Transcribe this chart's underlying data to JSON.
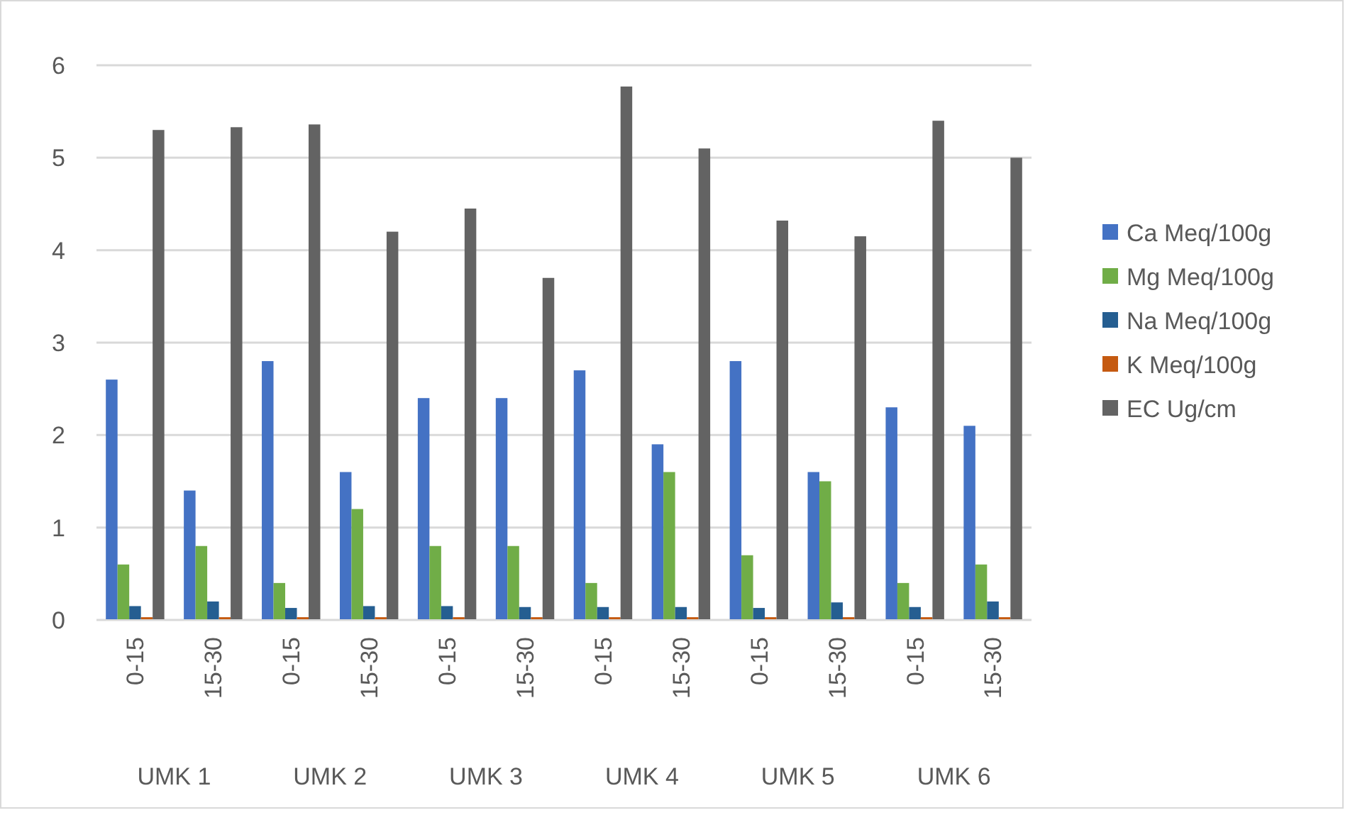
{
  "chart_data": {
    "type": "bar",
    "categories": [
      "0-15",
      "15-30",
      "0-15",
      "15-30",
      "0-15",
      "15-30",
      "0-15",
      "15-30",
      "0-15",
      "15-30",
      "0-15",
      "15-30"
    ],
    "annotations": [
      "UMK 1",
      "UMK 2",
      "UMK 3",
      "UMK 4",
      "UMK 5",
      "UMK 6"
    ],
    "series": [
      {
        "name": "Ca Meq/100g",
        "color": "#4472c4",
        "values": [
          2.6,
          1.4,
          2.8,
          1.6,
          2.4,
          2.4,
          2.7,
          1.9,
          2.8,
          1.6,
          2.3,
          2.1
        ]
      },
      {
        "name": "Mg Meq/100g",
        "color": "#70ad47",
        "values": [
          0.6,
          0.8,
          0.4,
          1.2,
          0.8,
          0.8,
          0.4,
          1.6,
          0.7,
          1.5,
          0.4,
          0.6
        ]
      },
      {
        "name": "Na Meq/100g",
        "color": "#255e91",
        "values": [
          0.15,
          0.2,
          0.13,
          0.15,
          0.15,
          0.14,
          0.14,
          0.14,
          0.13,
          0.19,
          0.14,
          0.2
        ]
      },
      {
        "name": "K Meq/100g",
        "color": "#c55a11",
        "values": [
          0.03,
          0.03,
          0.03,
          0.03,
          0.03,
          0.03,
          0.03,
          0.03,
          0.03,
          0.03,
          0.03,
          0.03
        ]
      },
      {
        "name": "EC Ug/cm",
        "color": "#636363",
        "values": [
          5.3,
          5.33,
          5.36,
          4.2,
          4.45,
          3.7,
          5.77,
          5.1,
          4.32,
          4.15,
          5.4,
          5.0
        ]
      }
    ],
    "ylim": [
      0,
      6
    ],
    "yticks": [
      0,
      1,
      2,
      3,
      4,
      5,
      6
    ],
    "grid": "y",
    "legend": "right"
  }
}
